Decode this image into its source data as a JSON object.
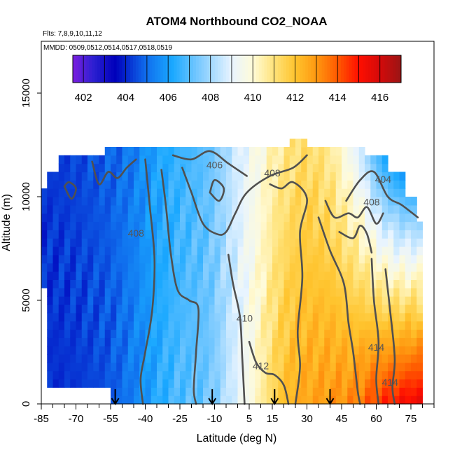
{
  "chart_data": {
    "type": "heatmap",
    "title": "ATOM4 Northbound CO2_NOAA",
    "subtitle_flights": "Flts: 7,8,9,10,11,12",
    "subtitle_dates": "MMDD: 0509,0512,0514,0517,0518,0519",
    "xlabel": "Latitude (deg N)",
    "ylabel": "Altitude (m)",
    "xlim": [
      -85,
      85
    ],
    "ylim": [
      0,
      17500
    ],
    "x_ticks": [
      "-85",
      "-70",
      "-55",
      "-40",
      "-25",
      "-10",
      "5",
      "15",
      "30",
      "45",
      "60",
      "75"
    ],
    "x_tick_values": [
      -85,
      -70,
      -55,
      -40,
      -25,
      -10,
      5,
      15,
      30,
      45,
      60,
      75
    ],
    "y_ticks": [
      "0",
      "5000",
      "10000",
      "15000"
    ],
    "y_tick_values": [
      0,
      5000,
      10000,
      15000
    ],
    "colorbar": {
      "range": [
        401.5,
        417
      ],
      "tick_labels": [
        "402",
        "404",
        "406",
        "408",
        "410",
        "412",
        "414",
        "416"
      ],
      "tick_values": [
        402,
        404,
        406,
        408,
        410,
        412,
        414,
        416
      ],
      "colors": [
        {
          "v": 401.5,
          "c": "#7b1fe0"
        },
        {
          "v": 402.5,
          "c": "#2a1fd0"
        },
        {
          "v": 403.5,
          "c": "#0000bb"
        },
        {
          "v": 405.0,
          "c": "#1070ee"
        },
        {
          "v": 406.2,
          "c": "#1aa8ff"
        },
        {
          "v": 407.5,
          "c": "#7ecbff"
        },
        {
          "v": 409.0,
          "c": "#e8f4ff"
        },
        {
          "v": 410.0,
          "c": "#fffbd8"
        },
        {
          "v": 411.0,
          "c": "#ffe37a"
        },
        {
          "v": 412.0,
          "c": "#ffc42e"
        },
        {
          "v": 413.0,
          "c": "#ff9810"
        },
        {
          "v": 414.0,
          "c": "#ff5a00"
        },
        {
          "v": 415.0,
          "c": "#ff0f00"
        },
        {
          "v": 416.0,
          "c": "#d40a0a"
        },
        {
          "v": 417.0,
          "c": "#9a1515"
        }
      ]
    },
    "field_profile": {
      "lat": [
        -85,
        -70,
        -55,
        -45,
        -35,
        -25,
        -15,
        -10,
        -5,
        0,
        5,
        10,
        15,
        20,
        25,
        30,
        40,
        50,
        55,
        60,
        65,
        70,
        75,
        80
      ],
      "co2_low": [
        404.0,
        404.2,
        404.6,
        405.3,
        406.3,
        406.9,
        407.2,
        407.5,
        408.3,
        409.0,
        409.7,
        410.5,
        411.4,
        412.1,
        412.5,
        412.7,
        413.0,
        413.3,
        413.8,
        414.4,
        414.8,
        415.1,
        415.4,
        415.6
      ],
      "co2_high": [
        404.2,
        404.4,
        404.8,
        405.3,
        406.1,
        406.6,
        407.0,
        407.4,
        408.1,
        408.7,
        409.3,
        409.8,
        410.4,
        410.8,
        411.1,
        411.3,
        410.8,
        409.3,
        408.3,
        406.8,
        405.9,
        405.3,
        405.0,
        405.0
      ]
    },
    "coverage_top": [
      {
        "lat": -85,
        "alt": 10500
      },
      {
        "lat": -82,
        "alt": 10500
      },
      {
        "lat": -82,
        "alt": 11100
      },
      {
        "lat": -77,
        "alt": 11100
      },
      {
        "lat": -77,
        "alt": 11800
      },
      {
        "lat": -58,
        "alt": 11800
      },
      {
        "lat": -58,
        "alt": 12300
      },
      {
        "lat": -28,
        "alt": 12300
      },
      {
        "lat": -28,
        "alt": 12500
      },
      {
        "lat": 22,
        "alt": 12500
      },
      {
        "lat": 22,
        "alt": 12900
      },
      {
        "lat": 30,
        "alt": 12900
      },
      {
        "lat": 30,
        "alt": 12300
      },
      {
        "lat": 55,
        "alt": 12300
      },
      {
        "lat": 55,
        "alt": 11800
      },
      {
        "lat": 64,
        "alt": 11800
      },
      {
        "lat": 64,
        "alt": 11000
      },
      {
        "lat": 72,
        "alt": 11000
      },
      {
        "lat": 72,
        "alt": 10000
      },
      {
        "lat": 77,
        "alt": 10000
      },
      {
        "lat": 77,
        "alt": 8600
      },
      {
        "lat": 80,
        "alt": 8600
      }
    ],
    "coverage_bottom": [
      {
        "lat": -85,
        "alt": 5500
      },
      {
        "lat": -82,
        "alt": 5500
      },
      {
        "lat": -82,
        "alt": 900
      },
      {
        "lat": -55,
        "alt": 900
      },
      {
        "lat": -55,
        "alt": 0
      },
      {
        "lat": 80,
        "alt": 0
      }
    ],
    "contours": [
      {
        "level": "406",
        "points": [
          [
            -40,
            11800
          ],
          [
            -38,
            9500
          ],
          [
            -36,
            7000
          ],
          [
            -37,
            4500
          ],
          [
            -40,
            2500
          ],
          [
            -42,
            1200
          ],
          [
            -41,
            0
          ]
        ]
      },
      {
        "level": "406",
        "points": [
          [
            -63,
            11700
          ],
          [
            -60,
            10600
          ],
          [
            -56,
            11200
          ],
          [
            -52,
            10900
          ],
          [
            -48,
            11400
          ],
          [
            -44,
            11800
          ]
        ]
      },
      {
        "level": "406",
        "points": [
          [
            -28,
            12000
          ],
          [
            -20,
            11800
          ],
          [
            -12,
            12200
          ],
          [
            -4,
            11600
          ],
          [
            4,
            11000
          ]
        ]
      },
      {
        "level": "406",
        "points": [
          [
            -75,
            10500
          ],
          [
            -72,
            9900
          ],
          [
            -70,
            10400
          ],
          [
            -73,
            10700
          ],
          [
            -75,
            10500
          ]
        ]
      },
      {
        "level": "408",
        "points": [
          [
            -33,
            11300
          ],
          [
            -31,
            9500
          ],
          [
            -29,
            7300
          ],
          [
            -26,
            5500
          ],
          [
            -21,
            5000
          ],
          [
            -17,
            4600
          ],
          [
            -18,
            2500
          ],
          [
            -19,
            700
          ],
          [
            -18,
            0
          ]
        ]
      },
      {
        "level": "408",
        "points": [
          [
            -24,
            11400
          ],
          [
            -20,
            10200
          ],
          [
            -15,
            8700
          ],
          [
            -9,
            8200
          ],
          [
            -5,
            8300
          ],
          [
            -1,
            9200
          ],
          [
            4,
            10200
          ],
          [
            14,
            11000
          ],
          [
            24,
            11400
          ],
          [
            30,
            12000
          ]
        ]
      },
      {
        "level": "408",
        "points": [
          [
            47,
            9800
          ],
          [
            53,
            10800
          ],
          [
            59,
            11200
          ],
          [
            65,
            10000
          ],
          [
            71,
            9600
          ],
          [
            78,
            9000
          ]
        ]
      },
      {
        "level": "408",
        "points": [
          [
            -12,
            10200
          ],
          [
            -8,
            9800
          ],
          [
            -6,
            10400
          ],
          [
            -10,
            10800
          ],
          [
            -12,
            10200
          ]
        ]
      },
      {
        "level": "410",
        "points": [
          [
            -4,
            7200
          ],
          [
            -2,
            5800
          ],
          [
            1,
            4200
          ],
          [
            2,
            2200
          ],
          [
            3,
            0
          ]
        ]
      },
      {
        "level": "410",
        "points": [
          [
            14,
            10600
          ],
          [
            19,
            10400
          ],
          [
            24,
            10700
          ],
          [
            30,
            9900
          ],
          [
            27,
            8300
          ],
          [
            28,
            6100
          ],
          [
            26,
            3500
          ],
          [
            27,
            1800
          ],
          [
            25,
            0
          ]
        ]
      },
      {
        "level": "410",
        "points": [
          [
            38,
            9800
          ],
          [
            42,
            9000
          ],
          [
            48,
            9200
          ],
          [
            52,
            9000
          ],
          [
            56,
            9500
          ],
          [
            60,
            8700
          ],
          [
            63,
            9200
          ]
        ]
      },
      {
        "level": "412",
        "points": [
          [
            5,
            3000
          ],
          [
            8,
            2000
          ],
          [
            12,
            1500
          ],
          [
            16,
            1400
          ],
          [
            20,
            900
          ],
          [
            22,
            0
          ]
        ]
      },
      {
        "level": "412",
        "points": [
          [
            35,
            9000
          ],
          [
            40,
            7400
          ],
          [
            46,
            5800
          ],
          [
            48,
            3900
          ],
          [
            50,
            2500
          ],
          [
            52,
            600
          ],
          [
            53,
            0
          ]
        ]
      },
      {
        "level": "412",
        "points": [
          [
            44,
            8300
          ],
          [
            50,
            8000
          ],
          [
            53,
            8600
          ],
          [
            56,
            8200
          ],
          [
            58,
            7300
          ]
        ]
      },
      {
        "level": "414",
        "points": [
          [
            58,
            7000
          ],
          [
            59,
            5000
          ],
          [
            61,
            3000
          ],
          [
            60,
            1200
          ],
          [
            61,
            0
          ]
        ]
      },
      {
        "level": "414",
        "points": [
          [
            64,
            6500
          ],
          [
            66,
            4500
          ],
          [
            68,
            2200
          ],
          [
            67,
            800
          ],
          [
            68,
            0
          ]
        ]
      }
    ],
    "contour_labels": [
      {
        "text": "406",
        "lat": -10,
        "alt": 11500
      },
      {
        "text": "408",
        "lat": 15,
        "alt": 11100
      },
      {
        "text": "404",
        "lat": 63,
        "alt": 10800
      },
      {
        "text": "408",
        "lat": 58,
        "alt": 9700
      },
      {
        "text": "408",
        "lat": -44,
        "alt": 8200
      },
      {
        "text": "410",
        "lat": 3,
        "alt": 4100
      },
      {
        "text": "412",
        "lat": 10,
        "alt": 1800
      },
      {
        "text": "414",
        "lat": 60,
        "alt": 2700
      },
      {
        "text": "414",
        "lat": 66,
        "alt": 1000
      }
    ],
    "markers_lat": [
      -53,
      -11,
      16,
      40
    ]
  }
}
